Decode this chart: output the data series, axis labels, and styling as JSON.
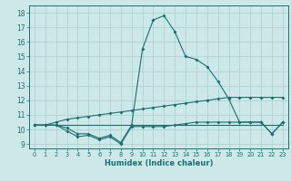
{
  "title": "",
  "xlabel": "Humidex (Indice chaleur)",
  "xlim": [
    -0.5,
    23.5
  ],
  "ylim": [
    8.7,
    18.5
  ],
  "yticks": [
    9,
    10,
    11,
    12,
    13,
    14,
    15,
    16,
    17,
    18
  ],
  "xticks": [
    0,
    1,
    2,
    3,
    4,
    5,
    6,
    7,
    8,
    9,
    10,
    11,
    12,
    13,
    14,
    15,
    16,
    17,
    18,
    19,
    20,
    21,
    22,
    23
  ],
  "bg_color": "#cce8e8",
  "line_color": "#1a7070",
  "grid_color": "#aacece",
  "line1_x": [
    0,
    1,
    2,
    3,
    4,
    5,
    6,
    7,
    8,
    9,
    10,
    11,
    12,
    13,
    14,
    15,
    16,
    17,
    18,
    19,
    20,
    21,
    22,
    23
  ],
  "line1_y": [
    10.3,
    10.3,
    10.3,
    9.9,
    9.5,
    9.6,
    9.3,
    9.5,
    9.0,
    10.2,
    10.2,
    10.2,
    10.2,
    10.3,
    10.4,
    10.5,
    10.5,
    10.5,
    10.5,
    10.5,
    10.5,
    10.5,
    9.7,
    10.5
  ],
  "line2_x": [
    0,
    1,
    2,
    3,
    4,
    5,
    6,
    7,
    8,
    9,
    10,
    11,
    12,
    13,
    14,
    15,
    16,
    17,
    18,
    19,
    20,
    21,
    22,
    23
  ],
  "line2_y": [
    10.3,
    10.3,
    10.5,
    10.7,
    10.8,
    10.9,
    11.0,
    11.1,
    11.2,
    11.3,
    11.4,
    11.5,
    11.6,
    11.7,
    11.8,
    11.9,
    12.0,
    12.1,
    12.2,
    12.2,
    12.2,
    12.2,
    12.2,
    12.2
  ],
  "line3_x": [
    0,
    1,
    2,
    3,
    4,
    5,
    6,
    7,
    8,
    9,
    10,
    11,
    12,
    13,
    14,
    15,
    16,
    17,
    18,
    19,
    20,
    21,
    22,
    23
  ],
  "line3_y": [
    10.3,
    10.3,
    10.3,
    10.3,
    10.3,
    10.3,
    10.3,
    10.3,
    10.3,
    10.3,
    10.3,
    10.3,
    10.3,
    10.3,
    10.3,
    10.3,
    10.3,
    10.3,
    10.3,
    10.3,
    10.3,
    10.3,
    10.3,
    10.3
  ],
  "line4_x": [
    0,
    1,
    2,
    3,
    4,
    5,
    6,
    7,
    8,
    9,
    10,
    11,
    12,
    13,
    14,
    15,
    16,
    17,
    18,
    19,
    20,
    21,
    22,
    23
  ],
  "line4_y": [
    10.3,
    10.3,
    10.3,
    10.1,
    9.7,
    9.7,
    9.4,
    9.6,
    9.1,
    10.3,
    15.5,
    17.5,
    17.8,
    16.7,
    15.0,
    14.8,
    14.3,
    13.3,
    12.1,
    10.5,
    10.5,
    10.5,
    9.7,
    10.5
  ]
}
